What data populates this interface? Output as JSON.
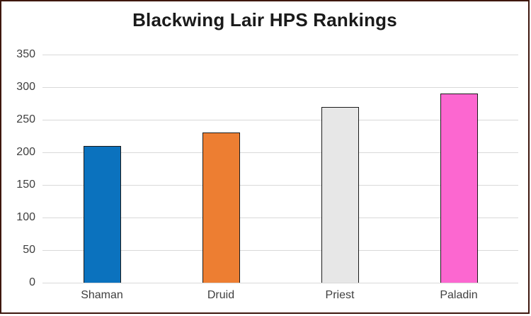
{
  "window": {
    "border_color": "#3e170e",
    "background_color": "#ffffff"
  },
  "chart_data": {
    "type": "bar",
    "title": "Blackwing Lair HPS Rankings",
    "categories": [
      "Shaman",
      "Druid",
      "Priest",
      "Paladin"
    ],
    "values": [
      210,
      230,
      270,
      290
    ],
    "bar_colors": [
      "#0b72be",
      "#ed7e32",
      "#e7e7e7",
      "#fc67d0"
    ],
    "bar_border_color": "#1a1a1a",
    "xlabel": "",
    "ylabel": "",
    "ylim": [
      0,
      350
    ],
    "y_ticks": [
      0,
      50,
      100,
      150,
      200,
      250,
      300,
      350
    ],
    "grid": "horizontal",
    "gridline_color": "#d9d9d9",
    "legend": "none",
    "title_color": "#1a1a1a",
    "tick_label_color": "#3f3f3f"
  }
}
